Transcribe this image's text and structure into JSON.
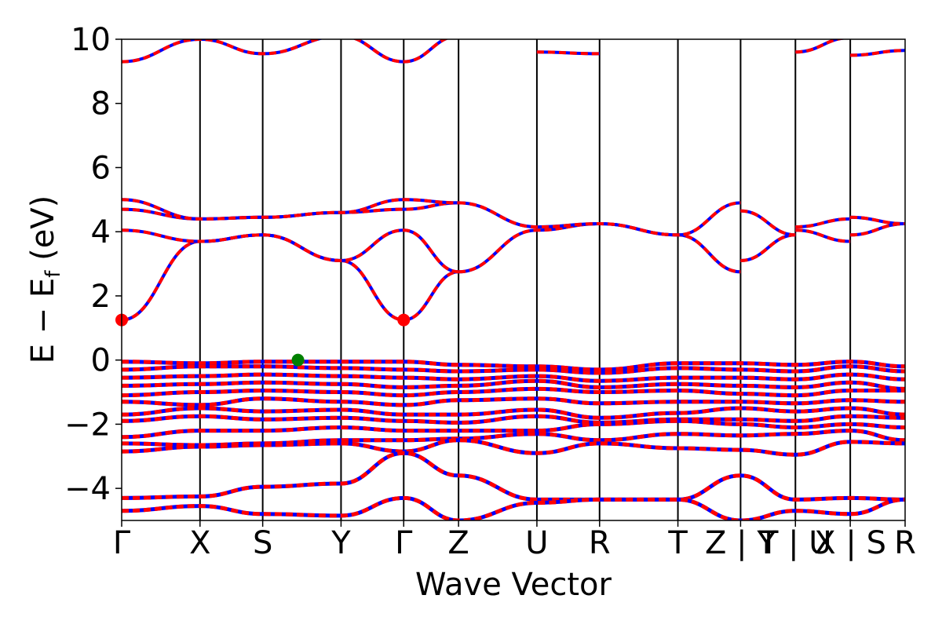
{
  "chart_data": {
    "type": "line",
    "title": "",
    "xlabel": "Wave Vector",
    "ylabel": "E − E",
    "ylabel_sub": "f",
    "ylabel_unit": " (eV)",
    "ylim": [
      -5,
      10
    ],
    "y_ticks": [
      -4,
      -2,
      0,
      2,
      4,
      6,
      8,
      10
    ],
    "y_tick_labels": [
      "−4",
      "−2",
      "0",
      "2",
      "4",
      "6",
      "8",
      "10"
    ],
    "x_ticks": [
      {
        "pos": 0.0,
        "label": "Γ"
      },
      {
        "pos": 1.0,
        "label": "X"
      },
      {
        "pos": 1.8,
        "label": "S"
      },
      {
        "pos": 2.8,
        "label": "Y"
      },
      {
        "pos": 3.6,
        "label": "Γ"
      },
      {
        "pos": 4.3,
        "label": "Z"
      },
      {
        "pos": 5.3,
        "label": "U"
      },
      {
        "pos": 6.1,
        "label": "R"
      },
      {
        "pos": 7.1,
        "label": "T"
      },
      {
        "pos": 7.9,
        "label": "Z | Y"
      },
      {
        "pos": 8.6,
        "label": "T | U"
      },
      {
        "pos": 9.3,
        "label": "X | S"
      },
      {
        "pos": 10.0,
        "label": "R"
      }
    ],
    "xlim": [
      0,
      10
    ],
    "grid": false,
    "line_colors": {
      "primary": "#ff0000",
      "secondary": "#0000ff"
    },
    "cbm_color": "#ff0000",
    "vbm_color": "#008000",
    "cbm_points": [
      {
        "x": 0.0,
        "y": 1.25
      },
      {
        "x": 3.6,
        "y": 1.25
      }
    ],
    "vbm_points": [
      {
        "x": 2.25,
        "y": 0.0
      }
    ],
    "conduction_bands": [
      {
        "name": "",
        "x": [
          0,
          1,
          1.8,
          2.8,
          3.6,
          4.3
        ],
        "y": [
          1.25,
          3.7,
          3.9,
          3.1,
          1.25,
          2.75
        ]
      },
      {
        "name": "",
        "x": [
          0,
          1,
          1.8,
          2.8,
          3.6,
          4.3
        ],
        "y": [
          4.05,
          3.7,
          3.9,
          3.1,
          4.05,
          2.75
        ]
      },
      {
        "name": "",
        "x": [
          0,
          1,
          1.8,
          2.8,
          3.6,
          4.3
        ],
        "y": [
          4.7,
          4.4,
          4.45,
          4.6,
          4.7,
          4.9
        ]
      },
      {
        "name": "",
        "x": [
          0,
          1,
          1.8,
          2.8,
          3.6,
          4.3
        ],
        "y": [
          5.0,
          4.4,
          4.45,
          4.6,
          5.0,
          4.9
        ]
      },
      {
        "name": "",
        "x": [
          4.3,
          5.3,
          6.1,
          7.1,
          7.9
        ],
        "y": [
          2.75,
          4.05,
          4.25,
          3.9,
          2.75
        ]
      },
      {
        "name": "",
        "x": [
          4.3,
          5.3,
          6.1,
          7.1,
          7.9
        ],
        "y": [
          4.9,
          4.15,
          4.25,
          3.9,
          4.9
        ]
      },
      {
        "name": "",
        "x": [
          7.9,
          8.6
        ],
        "y": [
          3.1,
          3.9
        ]
      },
      {
        "name": "",
        "x": [
          7.9,
          8.6
        ],
        "y": [
          4.65,
          3.9
        ]
      },
      {
        "name": "",
        "x": [
          8.6,
          9.3
        ],
        "y": [
          4.15,
          4.4
        ]
      },
      {
        "name": "",
        "x": [
          8.6,
          9.3
        ],
        "y": [
          4.05,
          3.7
        ]
      },
      {
        "name": "",
        "x": [
          9.3,
          10.0
        ],
        "y": [
          4.45,
          4.25
        ]
      },
      {
        "name": "",
        "x": [
          9.3,
          10.0
        ],
        "y": [
          3.9,
          4.25
        ]
      },
      {
        "name": "",
        "x": [
          0,
          1,
          1.8,
          2.8,
          3.6,
          4.3
        ],
        "y": [
          9.3,
          10.0,
          9.55,
          10.1,
          9.3,
          10.1
        ]
      },
      {
        "name": "",
        "x": [
          5.3,
          6.1
        ],
        "y": [
          9.6,
          9.55
        ]
      },
      {
        "name": "",
        "x": [
          8.6,
          9.3
        ],
        "y": [
          9.6,
          10.05
        ]
      },
      {
        "name": "",
        "x": [
          9.3,
          10.0
        ],
        "y": [
          9.5,
          9.65
        ]
      }
    ],
    "valence_bands": [
      {
        "name": "",
        "x": [
          0,
          1,
          1.8,
          2.8,
          3.6,
          4.3,
          5.3,
          6.1,
          7.1,
          7.9,
          8.6,
          9.3,
          10.0
        ],
        "y": [
          -0.05,
          -0.1,
          -0.05,
          -0.05,
          -0.05,
          -0.15,
          -0.2,
          -0.3,
          -0.1,
          -0.1,
          -0.15,
          -0.05,
          -0.2
        ]
      },
      {
        "name": "",
        "x": [
          0,
          1,
          1.8,
          2.8,
          3.6,
          4.3,
          5.3,
          6.1,
          7.1,
          7.9,
          8.6,
          9.3,
          10.0
        ],
        "y": [
          -0.3,
          -0.2,
          -0.2,
          -0.25,
          -0.3,
          -0.35,
          -0.3,
          -0.4,
          -0.25,
          -0.3,
          -0.35,
          -0.2,
          -0.35
        ]
      },
      {
        "name": "",
        "x": [
          0,
          1,
          1.8,
          2.8,
          3.6,
          4.3,
          5.3,
          6.1,
          7.1,
          7.9,
          8.6,
          9.3,
          10.0
        ],
        "y": [
          -0.55,
          -0.5,
          -0.45,
          -0.5,
          -0.55,
          -0.6,
          -0.5,
          -0.65,
          -0.55,
          -0.55,
          -0.6,
          -0.45,
          -0.6
        ]
      },
      {
        "name": "",
        "x": [
          0,
          1,
          1.8,
          2.8,
          3.6,
          4.3,
          5.3,
          6.1,
          7.1,
          7.9,
          8.6,
          9.3,
          10.0
        ],
        "y": [
          -0.8,
          -0.75,
          -0.7,
          -0.75,
          -0.85,
          -0.8,
          -0.65,
          -0.85,
          -0.75,
          -0.8,
          -0.85,
          -0.7,
          -0.9
        ]
      },
      {
        "name": "",
        "x": [
          0,
          1,
          1.8,
          2.8,
          3.6,
          4.3,
          5.3,
          6.1,
          7.1,
          7.9,
          8.6,
          9.3,
          10.0
        ],
        "y": [
          -1.1,
          -1.0,
          -0.95,
          -1.0,
          -1.1,
          -1.0,
          -0.9,
          -1.0,
          -0.95,
          -1.05,
          -1.1,
          -0.95,
          -0.95
        ]
      },
      {
        "name": "",
        "x": [
          0,
          1,
          1.8,
          2.8,
          3.6,
          4.3,
          5.3,
          6.1,
          7.1,
          7.9,
          8.6,
          9.3,
          10.0
        ],
        "y": [
          -1.3,
          -1.4,
          -1.2,
          -1.3,
          -1.4,
          -1.25,
          -1.2,
          -1.35,
          -1.3,
          -1.3,
          -1.35,
          -1.25,
          -1.3
        ]
      },
      {
        "name": "",
        "x": [
          0,
          1,
          1.8,
          2.8,
          3.6,
          4.3,
          5.3,
          6.1,
          7.1,
          7.9,
          8.6,
          9.3,
          10.0
        ],
        "y": [
          -1.7,
          -1.5,
          -1.6,
          -1.55,
          -1.7,
          -1.7,
          -1.55,
          -1.8,
          -1.65,
          -1.5,
          -1.6,
          -1.5,
          -1.7
        ]
      },
      {
        "name": "",
        "x": [
          0,
          1,
          1.8,
          2.8,
          3.6,
          4.3,
          5.3,
          6.1,
          7.1,
          7.9,
          8.6,
          9.3,
          10.0
        ],
        "y": [
          -1.9,
          -1.75,
          -1.85,
          -1.8,
          -1.9,
          -1.95,
          -1.75,
          -1.95,
          -1.85,
          -1.85,
          -1.9,
          -1.75,
          -1.8
        ]
      },
      {
        "name": "",
        "x": [
          0,
          1,
          1.8,
          2.8,
          3.6,
          4.3,
          5.3,
          6.1,
          7.1,
          7.9,
          8.6,
          9.3,
          10.0
        ],
        "y": [
          -2.4,
          -2.2,
          -2.2,
          -2.1,
          -2.2,
          -2.2,
          -2.2,
          -2.0,
          -1.9,
          -2.0,
          -2.1,
          -2.0,
          -2.1
        ]
      },
      {
        "name": "",
        "x": [
          0,
          1,
          1.8,
          2.8,
          3.6,
          4.3,
          5.3,
          6.1,
          7.1,
          7.9,
          8.6,
          9.3,
          10.0
        ],
        "y": [
          -2.6,
          -2.65,
          -2.6,
          -2.5,
          -2.5,
          -2.45,
          -2.3,
          -2.5,
          -2.3,
          -2.35,
          -2.3,
          -2.2,
          -2.5
        ]
      },
      {
        "name": "",
        "x": [
          0,
          1,
          1.8,
          2.8,
          3.6,
          4.3,
          5.3,
          6.1,
          7.1,
          7.9,
          8.6,
          9.3,
          10.0
        ],
        "y": [
          -2.85,
          -2.7,
          -2.65,
          -2.6,
          -2.85,
          -2.5,
          -2.9,
          -2.6,
          -2.75,
          -2.8,
          -2.95,
          -2.55,
          -2.6
        ]
      },
      {
        "name": "",
        "x": [
          0,
          1,
          1.8,
          2.8,
          3.6,
          4.3,
          5.3,
          6.1,
          7.1,
          7.9,
          8.6,
          9.3,
          10.0
        ],
        "y": [
          -4.3,
          -4.25,
          -3.95,
          -3.85,
          -2.9,
          -3.6,
          -4.35,
          -4.35,
          -4.35,
          -3.6,
          -4.35,
          -4.3,
          -4.35
        ]
      },
      {
        "name": "",
        "x": [
          0,
          1,
          1.8,
          2.8,
          3.6,
          4.3,
          5.3,
          6.1,
          7.1,
          7.9,
          8.6,
          9.3,
          10.0
        ],
        "y": [
          -4.7,
          -4.55,
          -4.8,
          -4.85,
          -4.3,
          -5.0,
          -4.45,
          -4.35,
          -4.35,
          -5.0,
          -4.7,
          -4.8,
          -4.35
        ]
      }
    ]
  }
}
